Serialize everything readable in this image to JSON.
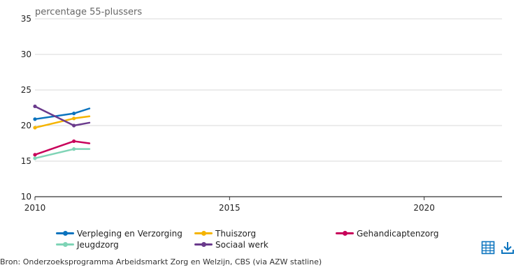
{
  "chart_data": {
    "type": "line",
    "ylabel": "percentage 55-plussers",
    "ylim": [
      10,
      35
    ],
    "yticks": [
      10,
      15,
      20,
      25,
      30,
      35
    ],
    "xlim": [
      2010,
      2022
    ],
    "xticks": [
      2010,
      2015,
      2020
    ],
    "x": [
      2010,
      2011,
      2011.4
    ],
    "grid": true,
    "legend_position": "bottom",
    "series": [
      {
        "name": "Verpleging en Verzorging",
        "color": "#0a73be",
        "values": [
          20.9,
          21.7,
          22.4
        ]
      },
      {
        "name": "Thuiszorg",
        "color": "#f5b400",
        "values": [
          19.7,
          21.0,
          21.3
        ]
      },
      {
        "name": "Gehandicaptenzorg",
        "color": "#c8005a",
        "values": [
          15.9,
          17.8,
          17.5
        ]
      },
      {
        "name": "Jeugdzorg",
        "color": "#7fd4b6",
        "values": [
          15.4,
          16.7,
          16.7
        ]
      },
      {
        "name": "Sociaal werk",
        "color": "#6a3a8c",
        "values": [
          22.7,
          20.0,
          20.4
        ]
      }
    ]
  },
  "source": "Bron: Onderzoeksprogramma Arbeidsmarkt Zorg en Welzijn, CBS (via AZW statline)",
  "icons": {
    "table": "table-icon",
    "download": "download-icon",
    "color": "#0a73be"
  }
}
